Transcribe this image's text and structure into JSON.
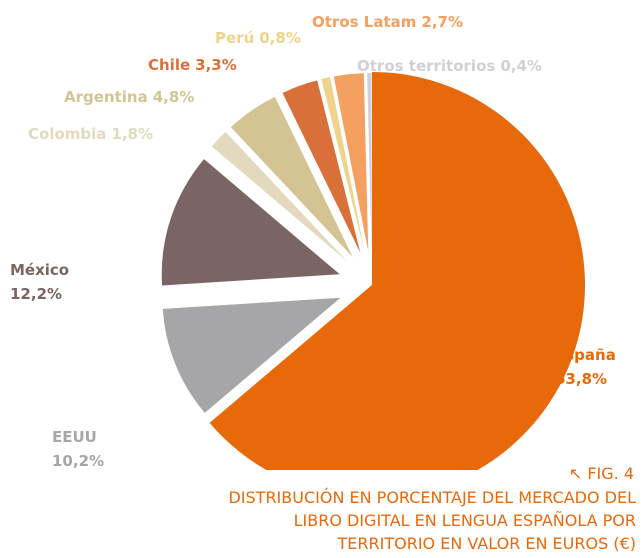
{
  "chart_data": {
    "type": "pie",
    "categories": [
      "España",
      "EEUU",
      "México",
      "Colombia",
      "Argentina",
      "Chile",
      "Perú",
      "Otros Latam",
      "Otros territorios"
    ],
    "values": [
      63.8,
      10.2,
      12.2,
      1.8,
      4.8,
      3.3,
      0.8,
      2.7,
      0.4
    ],
    "value_labels": [
      "63,8%",
      "10,2%",
      "12,2%",
      "1,8%",
      "4,8%",
      "3,3%",
      "0,8%",
      "2,7%",
      "0,4%"
    ],
    "colors": [
      "#e8690a",
      "#a6a6a8",
      "#7b6564",
      "#e3d9bf",
      "#d4c493",
      "#d9703a",
      "#f0d38a",
      "#f3a060",
      "#d0d0d6"
    ],
    "figure_label": "↖ FIG. 4",
    "title": "DISTRIBUCIÓN EN PORCENTAJE DEL MERCADO DEL LIBRO DIGITAL EN LENGUA ESPAÑOLA POR TERRITORIO EN VALOR EN EUROS (€)"
  }
}
